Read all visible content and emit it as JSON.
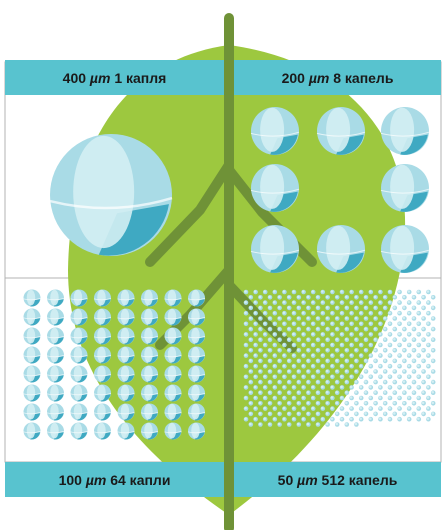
{
  "quadrants": [
    {
      "id": "top-left",
      "size": "400",
      "unit": "µm",
      "count": "1 капля",
      "drops": 1
    },
    {
      "id": "top-right",
      "size": "200",
      "unit": "µm",
      "count": "8 капель",
      "drops": 8
    },
    {
      "id": "bottom-left",
      "size": "100",
      "unit": "µm",
      "count": "64 капли",
      "drops": 64
    },
    {
      "id": "bottom-right",
      "size": "50",
      "unit": "µm",
      "count": "512 капель",
      "drops": 512
    }
  ],
  "colors": {
    "bar": "#58c3cf",
    "leaf": "#9dc83f",
    "stem": "#6f9237",
    "drop_light": "#d3eef3",
    "drop_mid": "#a9dbe6",
    "drop_dark": "#3fa9c2",
    "grid_line": "#b3b3b3"
  }
}
